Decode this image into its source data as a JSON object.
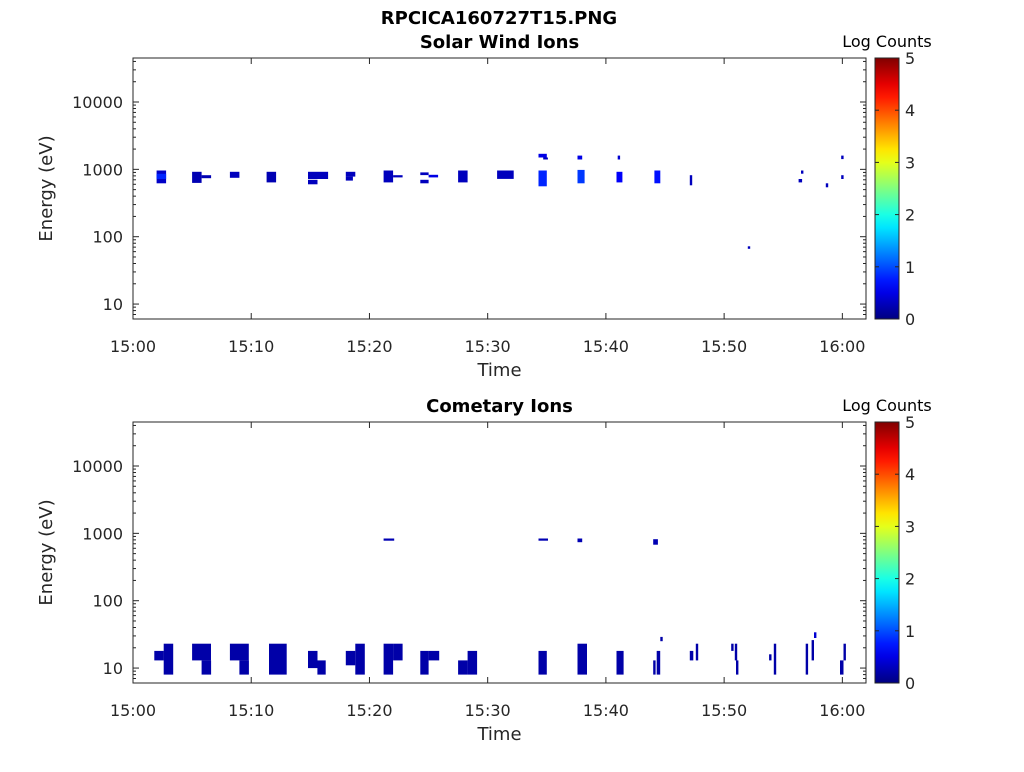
{
  "figure_title": "RPCICA160727T15.PNG",
  "chart_data": [
    {
      "type": "heatmap",
      "title": "Solar Wind Ions",
      "xlabel": "Time",
      "ylabel": "Energy (eV)",
      "y_scale": "log",
      "ylim": [
        6,
        45000
      ],
      "x_range_minutes": [
        "15:00",
        "16:02"
      ],
      "xlim": [
        0,
        62
      ],
      "x_ticks": [
        "15:00",
        "15:10",
        "15:20",
        "15:30",
        "15:40",
        "15:50",
        "16:00"
      ],
      "y_ticks": [
        "10",
        "100",
        "1000",
        "10000"
      ],
      "colorbar": {
        "label": "Log Counts",
        "range": [
          0,
          5
        ],
        "ticks": [
          "0",
          "1",
          "2",
          "3",
          "4",
          "5"
        ],
        "colormap": "jet"
      },
      "cells": [
        {
          "t0": 2.0,
          "t1": 2.8,
          "e0": 620,
          "e1": 960,
          "v": 0.35
        },
        {
          "t0": 2.0,
          "t1": 2.8,
          "e0": 720,
          "e1": 860,
          "v": 0.8
        },
        {
          "t0": 5.0,
          "t1": 5.8,
          "e0": 630,
          "e1": 920,
          "v": 0.25
        },
        {
          "t0": 5.8,
          "t1": 6.6,
          "e0": 740,
          "e1": 820,
          "v": 0.25
        },
        {
          "t0": 8.2,
          "t1": 9.0,
          "e0": 750,
          "e1": 920,
          "v": 0.3
        },
        {
          "t0": 11.3,
          "t1": 12.1,
          "e0": 640,
          "e1": 920,
          "v": 0.25
        },
        {
          "t0": 14.8,
          "t1": 16.5,
          "e0": 720,
          "e1": 920,
          "v": 0.3
        },
        {
          "t0": 14.8,
          "t1": 15.6,
          "e0": 600,
          "e1": 700,
          "v": 0.3
        },
        {
          "t0": 18.0,
          "t1": 18.8,
          "e0": 780,
          "e1": 920,
          "v": 0.3
        },
        {
          "t0": 18.0,
          "t1": 18.6,
          "e0": 680,
          "e1": 780,
          "v": 0.3
        },
        {
          "t0": 21.2,
          "t1": 22.0,
          "e0": 640,
          "e1": 960,
          "v": 0.3
        },
        {
          "t0": 22.0,
          "t1": 22.8,
          "e0": 760,
          "e1": 820,
          "v": 0.3
        },
        {
          "t0": 24.3,
          "t1": 25.0,
          "e0": 820,
          "e1": 900,
          "v": 0.3
        },
        {
          "t0": 24.3,
          "t1": 25.0,
          "e0": 620,
          "e1": 700,
          "v": 0.3
        },
        {
          "t0": 25.0,
          "t1": 25.8,
          "e0": 760,
          "e1": 830,
          "v": 0.5
        },
        {
          "t0": 27.5,
          "t1": 28.3,
          "e0": 640,
          "e1": 960,
          "v": 0.3
        },
        {
          "t0": 30.8,
          "t1": 32.2,
          "e0": 720,
          "e1": 960,
          "v": 0.3
        },
        {
          "t0": 34.3,
          "t1": 35.0,
          "e0": 560,
          "e1": 960,
          "v": 0.8
        },
        {
          "t0": 34.3,
          "t1": 35.0,
          "e0": 1500,
          "e1": 1700,
          "v": 0.5
        },
        {
          "t0": 34.7,
          "t1": 35.1,
          "e0": 1400,
          "e1": 1500,
          "v": 0.3
        },
        {
          "t0": 37.6,
          "t1": 38.2,
          "e0": 620,
          "e1": 980,
          "v": 0.9
        },
        {
          "t0": 37.6,
          "t1": 38.0,
          "e0": 1400,
          "e1": 1600,
          "v": 0.5
        },
        {
          "t0": 40.9,
          "t1": 41.4,
          "e0": 640,
          "e1": 920,
          "v": 0.6
        },
        {
          "t0": 41.0,
          "t1": 41.2,
          "e0": 1400,
          "e1": 1600,
          "v": 0.4
        },
        {
          "t0": 44.1,
          "t1": 44.6,
          "e0": 620,
          "e1": 960,
          "v": 0.7
        },
        {
          "t0": 47.1,
          "t1": 47.3,
          "e0": 580,
          "e1": 820,
          "v": 0.3
        },
        {
          "t0": 52.0,
          "t1": 52.2,
          "e0": 66,
          "e1": 72,
          "v": 0.3
        },
        {
          "t0": 56.3,
          "t1": 56.6,
          "e0": 640,
          "e1": 720,
          "v": 0.3
        },
        {
          "t0": 56.5,
          "t1": 56.7,
          "e0": 860,
          "e1": 960,
          "v": 0.3
        },
        {
          "t0": 58.6,
          "t1": 58.8,
          "e0": 540,
          "e1": 620,
          "v": 0.3
        },
        {
          "t0": 59.9,
          "t1": 60.1,
          "e0": 720,
          "e1": 820,
          "v": 0.3
        },
        {
          "t0": 59.9,
          "t1": 60.1,
          "e0": 1420,
          "e1": 1600,
          "v": 0.3
        }
      ]
    },
    {
      "type": "heatmap",
      "title": "Cometary Ions",
      "xlabel": "Time",
      "ylabel": "Energy (eV)",
      "y_scale": "log",
      "ylim": [
        6,
        45000
      ],
      "x_range_minutes": [
        "15:00",
        "16:02"
      ],
      "xlim": [
        0,
        62
      ],
      "x_ticks": [
        "15:00",
        "15:10",
        "15:20",
        "15:30",
        "15:40",
        "15:50",
        "16:00"
      ],
      "y_ticks": [
        "10",
        "100",
        "1000",
        "10000"
      ],
      "colorbar": {
        "label": "Log Counts",
        "range": [
          0,
          5
        ],
        "ticks": [
          "0",
          "1",
          "2",
          "3",
          "4",
          "5"
        ],
        "colormap": "jet"
      },
      "cells": [
        {
          "t0": 1.8,
          "t1": 2.6,
          "e0": 13,
          "e1": 18,
          "v": 0.2
        },
        {
          "t0": 2.6,
          "t1": 3.4,
          "e0": 8,
          "e1": 23,
          "v": 0.2
        },
        {
          "t0": 5.0,
          "t1": 6.6,
          "e0": 13,
          "e1": 23,
          "v": 0.2
        },
        {
          "t0": 5.8,
          "t1": 6.6,
          "e0": 8,
          "e1": 13,
          "v": 0.2
        },
        {
          "t0": 8.2,
          "t1": 9.8,
          "e0": 13,
          "e1": 23,
          "v": 0.2
        },
        {
          "t0": 9.0,
          "t1": 9.8,
          "e0": 8,
          "e1": 13,
          "v": 0.2
        },
        {
          "t0": 11.5,
          "t1": 13.0,
          "e0": 8,
          "e1": 23,
          "v": 0.2
        },
        {
          "t0": 14.8,
          "t1": 15.6,
          "e0": 10,
          "e1": 18,
          "v": 0.2
        },
        {
          "t0": 15.6,
          "t1": 16.3,
          "e0": 8,
          "e1": 13,
          "v": 0.2
        },
        {
          "t0": 18.0,
          "t1": 18.8,
          "e0": 11,
          "e1": 18,
          "v": 0.2
        },
        {
          "t0": 18.8,
          "t1": 19.6,
          "e0": 8,
          "e1": 23,
          "v": 0.2
        },
        {
          "t0": 21.2,
          "t1": 22.0,
          "e0": 8,
          "e1": 23,
          "v": 0.2
        },
        {
          "t0": 22.0,
          "t1": 22.8,
          "e0": 13,
          "e1": 23,
          "v": 0.2
        },
        {
          "t0": 24.3,
          "t1": 25.0,
          "e0": 8,
          "e1": 18,
          "v": 0.2
        },
        {
          "t0": 25.0,
          "t1": 25.9,
          "e0": 13,
          "e1": 18,
          "v": 0.2
        },
        {
          "t0": 27.5,
          "t1": 28.3,
          "e0": 8,
          "e1": 13,
          "v": 0.2
        },
        {
          "t0": 28.3,
          "t1": 29.1,
          "e0": 8,
          "e1": 18,
          "v": 0.2
        },
        {
          "t0": 34.3,
          "t1": 35.0,
          "e0": 8,
          "e1": 18,
          "v": 0.2
        },
        {
          "t0": 37.6,
          "t1": 38.4,
          "e0": 8,
          "e1": 23,
          "v": 0.2
        },
        {
          "t0": 40.9,
          "t1": 41.5,
          "e0": 8,
          "e1": 18,
          "v": 0.2
        },
        {
          "t0": 44.0,
          "t1": 44.2,
          "e0": 8,
          "e1": 13,
          "v": 0.2
        },
        {
          "t0": 44.3,
          "t1": 44.6,
          "e0": 8,
          "e1": 18,
          "v": 0.2
        },
        {
          "t0": 44.6,
          "t1": 44.8,
          "e0": 25,
          "e1": 29,
          "v": 0.2
        },
        {
          "t0": 47.1,
          "t1": 47.4,
          "e0": 13,
          "e1": 18,
          "v": 0.2
        },
        {
          "t0": 47.6,
          "t1": 47.8,
          "e0": 13,
          "e1": 23,
          "v": 0.2
        },
        {
          "t0": 50.6,
          "t1": 50.8,
          "e0": 18,
          "e1": 23,
          "v": 0.2
        },
        {
          "t0": 50.9,
          "t1": 51.1,
          "e0": 13,
          "e1": 23,
          "v": 0.2
        },
        {
          "t0": 51.0,
          "t1": 51.2,
          "e0": 8,
          "e1": 13,
          "v": 0.2
        },
        {
          "t0": 53.8,
          "t1": 54.0,
          "e0": 13,
          "e1": 16,
          "v": 0.2
        },
        {
          "t0": 54.2,
          "t1": 54.4,
          "e0": 8,
          "e1": 23,
          "v": 0.2
        },
        {
          "t0": 56.9,
          "t1": 57.1,
          "e0": 8,
          "e1": 23,
          "v": 0.2
        },
        {
          "t0": 57.4,
          "t1": 57.6,
          "e0": 13,
          "e1": 26,
          "v": 0.2
        },
        {
          "t0": 57.6,
          "t1": 57.8,
          "e0": 28,
          "e1": 34,
          "v": 0.4
        },
        {
          "t0": 59.8,
          "t1": 60.1,
          "e0": 8,
          "e1": 13,
          "v": 0.2
        },
        {
          "t0": 60.1,
          "t1": 60.3,
          "e0": 13,
          "e1": 23,
          "v": 0.2
        },
        {
          "t0": 21.2,
          "t1": 22.1,
          "e0": 780,
          "e1": 840,
          "v": 0.25
        },
        {
          "t0": 34.3,
          "t1": 35.1,
          "e0": 780,
          "e1": 840,
          "v": 0.25
        },
        {
          "t0": 37.6,
          "t1": 38.0,
          "e0": 740,
          "e1": 840,
          "v": 0.25
        },
        {
          "t0": 44.0,
          "t1": 44.4,
          "e0": 680,
          "e1": 820,
          "v": 0.25
        }
      ]
    }
  ]
}
